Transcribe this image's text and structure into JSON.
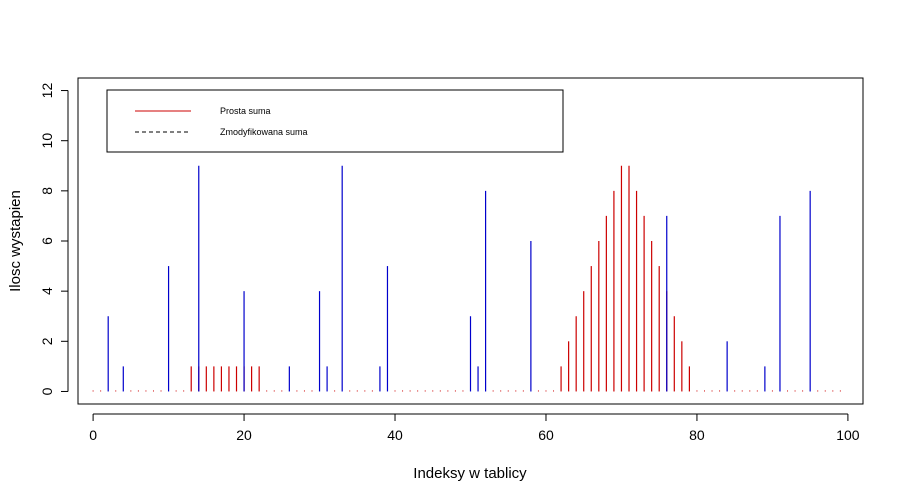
{
  "chart_data": {
    "type": "bar",
    "title": "",
    "xlabel": "Indeksy w tablicy",
    "ylabel": "Ilosc wystapien",
    "xlim": [
      -2,
      102
    ],
    "ylim": [
      -0.5,
      12.5
    ],
    "xticks": [
      0,
      20,
      40,
      60,
      80,
      100
    ],
    "yticks": [
      0,
      2,
      4,
      6,
      8,
      10,
      12
    ],
    "grid": false,
    "legend_position": "top-left",
    "legend": [
      {
        "label": "Prosta suma",
        "color": "#cc0000",
        "linestyle": "solid"
      },
      {
        "label": "Zmodyfikowana suma",
        "color": "#000000",
        "linestyle": "dashed"
      }
    ],
    "zero_marker_color": "#cc0000",
    "series": [
      {
        "name": "Prosta suma",
        "color": "#cc0000",
        "x": [
          13,
          14,
          15,
          16,
          17,
          18,
          19,
          20,
          21,
          22,
          62,
          63,
          64,
          65,
          66,
          67,
          68,
          69,
          70,
          71,
          72,
          73,
          74,
          75,
          76,
          77,
          78,
          79
        ],
        "values": [
          1,
          1,
          1,
          1,
          1,
          1,
          1,
          1,
          1,
          1,
          1,
          2,
          3,
          4,
          5,
          6,
          7,
          8,
          9,
          9,
          8,
          7,
          6,
          5,
          4,
          3,
          2,
          1
        ]
      },
      {
        "name": "",
        "color": "#0000cc",
        "x": [
          2,
          4,
          10,
          14,
          20,
          26,
          30,
          31,
          33,
          38,
          39,
          50,
          51,
          52,
          58,
          76,
          84,
          89,
          91,
          95
        ],
        "values": [
          3,
          1,
          5,
          9,
          4,
          1,
          4,
          1,
          9,
          1,
          5,
          3,
          1,
          8,
          6,
          7,
          2,
          1,
          7,
          8
        ]
      }
    ]
  }
}
